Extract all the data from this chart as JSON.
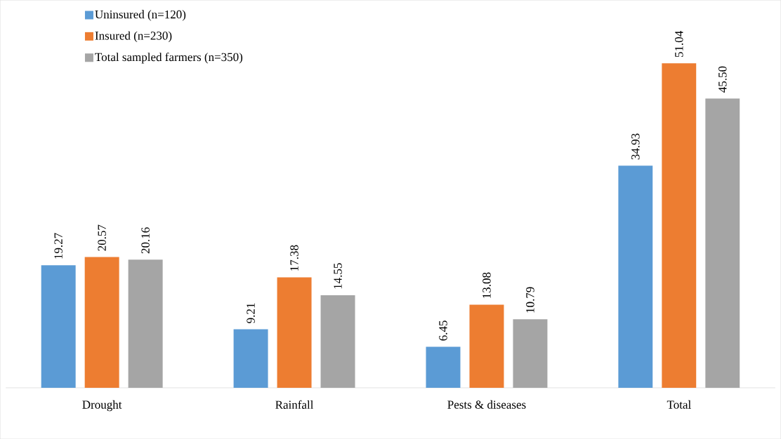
{
  "chart_data": {
    "type": "bar",
    "categories": [
      "Drought",
      "Rainfall",
      "Pests & diseases",
      "Total"
    ],
    "series": [
      {
        "name": "Uninsured (n=120)",
        "color": "#5b9bd5",
        "values": [
          19.27,
          9.21,
          6.45,
          34.93
        ],
        "value_labels": [
          "19.27",
          "9.21",
          "6.45",
          "34.93"
        ]
      },
      {
        "name": "Insured (n=230)",
        "color": "#ed7d31",
        "values": [
          20.57,
          17.38,
          13.08,
          51.04
        ],
        "value_labels": [
          "20.57",
          "17.38",
          "13.08",
          "51.04"
        ]
      },
      {
        "name": "Total sampled farmers (n=350)",
        "color": "#a5a5a5",
        "values": [
          20.16,
          14.55,
          10.79,
          45.5
        ],
        "value_labels": [
          "20.16",
          "14.55",
          "10.79",
          "45.50"
        ]
      }
    ],
    "legend": "top left"
  }
}
